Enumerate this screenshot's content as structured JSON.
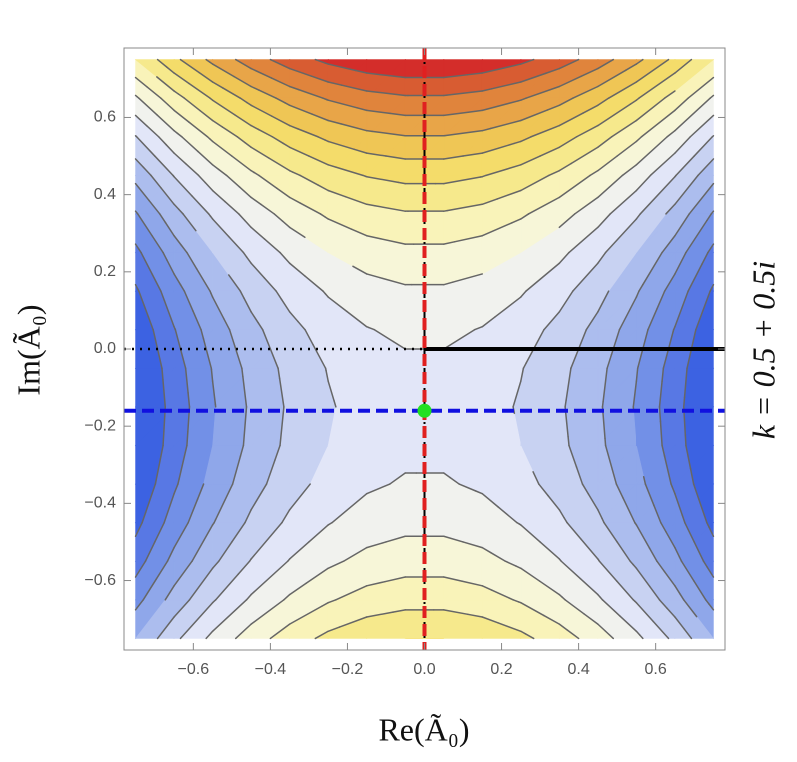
{
  "chart_data": {
    "type": "contour",
    "xlabel": "Re(Ã₀)",
    "ylabel": "Im(Ã₀)",
    "annotation": "k = 0.5 + 0.5i",
    "xlim": [
      -0.78,
      0.78
    ],
    "ylim": [
      -0.78,
      0.78
    ],
    "xticks": [
      {
        "value": -0.6,
        "label": "−0.6"
      },
      {
        "value": -0.4,
        "label": "−0.4"
      },
      {
        "value": -0.2,
        "label": "−0.2"
      },
      {
        "value": 0,
        "label": "0.0"
      },
      {
        "value": 0.2,
        "label": "0.2"
      },
      {
        "value": 0.4,
        "label": "0.4"
      },
      {
        "value": 0.6,
        "label": "0.6"
      }
    ],
    "yticks": [
      {
        "value": -0.6,
        "label": "−0.6"
      },
      {
        "value": -0.4,
        "label": "−0.4"
      },
      {
        "value": -0.2,
        "label": "−0.2"
      },
      {
        "value": 0,
        "label": "0.0"
      },
      {
        "value": 0.2,
        "label": "0.2"
      },
      {
        "value": 0.4,
        "label": "0.4"
      },
      {
        "value": 0.6,
        "label": "0.6"
      }
    ],
    "x": [
      -0.75,
      -0.65,
      -0.55,
      -0.45,
      -0.35,
      -0.25,
      -0.15,
      -0.05,
      0.05,
      0.15,
      0.25,
      0.35,
      0.45,
      0.55,
      0.65,
      0.75
    ],
    "y": [
      -0.75,
      -0.65,
      -0.55,
      -0.45,
      -0.35,
      -0.25,
      -0.15,
      -0.05,
      0.05,
      0.15,
      0.25,
      0.35,
      0.45,
      0.55,
      0.65,
      0.75
    ],
    "z": [
      [
        -0.24,
        -0.1,
        0.02,
        0.12,
        0.2,
        0.26,
        0.3,
        0.32,
        0.32,
        0.3,
        0.26,
        0.2,
        0.12,
        0.02,
        -0.1,
        -0.24
      ],
      [
        -0.348,
        -0.208,
        -0.088,
        0.012,
        0.092,
        0.152,
        0.192,
        0.212,
        0.212,
        0.192,
        0.152,
        0.092,
        0.012,
        -0.088,
        -0.208,
        -0.348
      ],
      [
        -0.436,
        -0.296,
        -0.176,
        -0.076,
        0.004,
        0.064,
        0.104,
        0.124,
        0.124,
        0.104,
        0.064,
        0.004,
        -0.076,
        -0.176,
        -0.296,
        -0.436
      ],
      [
        -0.504,
        -0.364,
        -0.244,
        -0.144,
        -0.064,
        -0.004,
        0.036,
        0.056,
        0.056,
        0.036,
        -0.004,
        -0.064,
        -0.144,
        -0.244,
        -0.364,
        -0.504
      ],
      [
        -0.552,
        -0.412,
        -0.292,
        -0.192,
        -0.112,
        -0.052,
        -0.012,
        0.008,
        0.008,
        -0.012,
        -0.052,
        -0.112,
        -0.192,
        -0.292,
        -0.412,
        -0.552
      ],
      [
        -0.58,
        -0.44,
        -0.32,
        -0.22,
        -0.14,
        -0.08,
        -0.04,
        -0.02,
        -0.02,
        -0.04,
        -0.08,
        -0.14,
        -0.22,
        -0.32,
        -0.44,
        -0.58
      ],
      [
        -0.588,
        -0.448,
        -0.328,
        -0.228,
        -0.148,
        -0.088,
        -0.048,
        -0.028,
        -0.028,
        -0.048,
        -0.088,
        -0.148,
        -0.228,
        -0.328,
        -0.448,
        -0.588
      ],
      [
        -0.576,
        -0.436,
        -0.316,
        -0.216,
        -0.136,
        -0.076,
        -0.036,
        -0.016,
        -0.016,
        -0.036,
        -0.076,
        -0.136,
        -0.216,
        -0.316,
        -0.436,
        -0.576
      ],
      [
        -0.544,
        -0.404,
        -0.284,
        -0.184,
        -0.104,
        -0.044,
        -0.004,
        0.016,
        0.016,
        -0.004,
        -0.044,
        -0.104,
        -0.184,
        -0.284,
        -0.404,
        -0.544
      ],
      [
        -0.492,
        -0.352,
        -0.232,
        -0.132,
        -0.052,
        0.008,
        0.048,
        0.068,
        0.068,
        0.048,
        0.008,
        -0.052,
        -0.132,
        -0.232,
        -0.352,
        -0.492
      ],
      [
        -0.42,
        -0.28,
        -0.16,
        -0.06,
        0.02,
        0.08,
        0.12,
        0.14,
        0.14,
        0.12,
        0.08,
        0.02,
        -0.06,
        -0.16,
        -0.28,
        -0.42
      ],
      [
        -0.328,
        -0.188,
        -0.068,
        0.032,
        0.112,
        0.172,
        0.212,
        0.232,
        0.232,
        0.212,
        0.172,
        0.112,
        0.032,
        -0.068,
        -0.188,
        -0.328
      ],
      [
        -0.216,
        -0.076,
        0.044,
        0.144,
        0.224,
        0.284,
        0.324,
        0.344,
        0.344,
        0.324,
        0.284,
        0.224,
        0.144,
        0.044,
        -0.076,
        -0.216
      ],
      [
        -0.084,
        0.056,
        0.176,
        0.276,
        0.356,
        0.416,
        0.456,
        0.476,
        0.476,
        0.456,
        0.416,
        0.356,
        0.276,
        0.176,
        0.056,
        -0.084
      ],
      [
        0.068,
        0.208,
        0.328,
        0.428,
        0.508,
        0.568,
        0.608,
        0.628,
        0.628,
        0.608,
        0.568,
        0.508,
        0.428,
        0.328,
        0.208,
        0.068
      ],
      [
        0.24,
        0.38,
        0.5,
        0.6,
        0.68,
        0.74,
        0.78,
        0.8,
        0.8,
        0.78,
        0.74,
        0.68,
        0.6,
        0.5,
        0.38,
        0.24
      ]
    ],
    "levels": [
      -0.48,
      -0.4,
      -0.32,
      -0.24,
      -0.16,
      -0.08,
      0,
      0.08,
      0.16,
      0.24,
      0.32,
      0.4,
      0.48,
      0.56,
      0.64,
      0.72
    ],
    "colors": [
      "#3c62e2",
      "#5878e4",
      "#7290e7",
      "#8fa7ea",
      "#acbdee",
      "#c8d2f2",
      "#e2e6f8",
      "#f1f2ee",
      "#f7f6d8",
      "#f9f3b9",
      "#f6e98c",
      "#f4dc6a",
      "#efc655",
      "#e8a548",
      "#e0843c",
      "#d85c32",
      "#d42d2a"
    ],
    "contour_color": "#666666",
    "vertical_line": {
      "x": 0,
      "color": "#e02020"
    },
    "horizontal_line": {
      "y": -0.16,
      "color": "#1010e0"
    },
    "branch_cut": {
      "y": 0,
      "x": 0,
      "color": "#000000"
    },
    "point": {
      "x": 0,
      "y": -0.16,
      "color": "#22e022"
    }
  }
}
